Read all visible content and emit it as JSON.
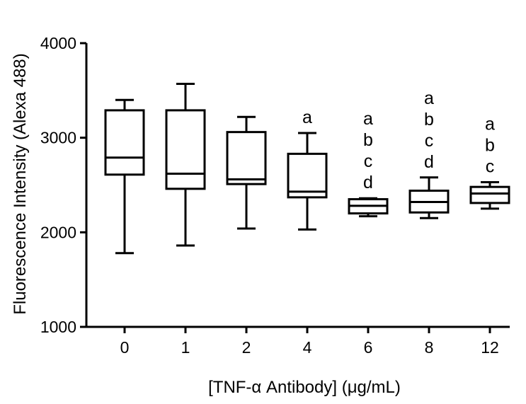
{
  "chart_data": {
    "type": "box",
    "xlabel": "[TNF-α Antibody] (μg/mL)",
    "ylabel": "Fluorescence Intensity (Alexa 488)",
    "ylim": [
      1000,
      4000
    ],
    "yticks": [
      1000,
      2000,
      3000,
      4000
    ],
    "ytick_labels": [
      "1000",
      "2000",
      "3000",
      "4000"
    ],
    "grid": false,
    "categories": [
      "0",
      "1",
      "2",
      "4",
      "6",
      "8",
      "12"
    ],
    "boxes": [
      {
        "category": "0",
        "min": 1780,
        "q1": 2610,
        "median": 2790,
        "q3": 3290,
        "max": 3400,
        "annotation": []
      },
      {
        "category": "1",
        "min": 1860,
        "q1": 2460,
        "median": 2620,
        "q3": 3290,
        "max": 3570,
        "annotation": []
      },
      {
        "category": "2",
        "min": 2040,
        "q1": 2510,
        "median": 2560,
        "q3": 3060,
        "max": 3220,
        "annotation": []
      },
      {
        "category": "4",
        "min": 2030,
        "q1": 2370,
        "median": 2430,
        "q3": 2830,
        "max": 3050,
        "annotation": [
          "a"
        ]
      },
      {
        "category": "6",
        "min": 2170,
        "q1": 2200,
        "median": 2280,
        "q3": 2350,
        "max": 2360,
        "annotation": [
          "a",
          "b",
          "c",
          "d"
        ]
      },
      {
        "category": "8",
        "min": 2150,
        "q1": 2210,
        "median": 2320,
        "q3": 2440,
        "max": 2580,
        "annotation": [
          "a",
          "b",
          "c",
          "d"
        ]
      },
      {
        "category": "12",
        "min": 2250,
        "q1": 2310,
        "median": 2410,
        "q3": 2480,
        "max": 2530,
        "annotation": [
          "a",
          "b",
          "c"
        ]
      }
    ]
  }
}
